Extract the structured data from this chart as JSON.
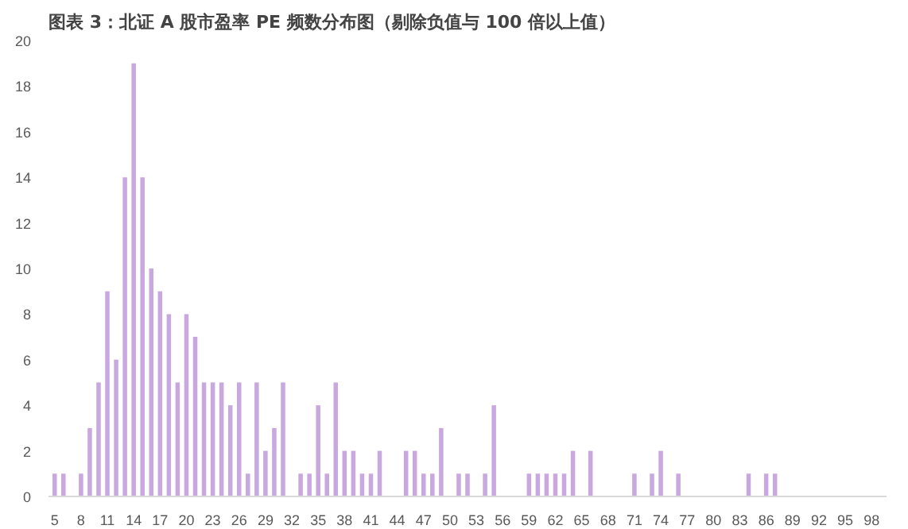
{
  "chart_data": {
    "type": "bar",
    "title": "图表 3：北证 A 股市盈率 PE 频数分布图（剔除负值与 100 倍以上值）",
    "categories": [
      "5",
      null,
      null,
      "8",
      null,
      null,
      "11",
      null,
      null,
      "14",
      null,
      null,
      "17",
      null,
      null,
      "20",
      null,
      null,
      "23",
      null,
      null,
      "26",
      null,
      null,
      "29",
      null,
      null,
      "32",
      null,
      null,
      "35",
      null,
      null,
      "38",
      null,
      null,
      "41",
      null,
      null,
      "44",
      null,
      null,
      "47",
      null,
      null,
      "50",
      null,
      null,
      "53",
      null,
      null,
      "56",
      null,
      null,
      "59",
      null,
      null,
      "62",
      null,
      null,
      "65",
      null,
      null,
      "68",
      null,
      null,
      "71",
      null,
      null,
      "74",
      null,
      null,
      "77",
      null,
      null,
      "80",
      null,
      null,
      "83",
      null,
      null,
      "86",
      null,
      null,
      "89",
      null,
      null,
      "92",
      null,
      null,
      "95",
      null,
      null,
      "98",
      null
    ],
    "values": [
      1,
      1,
      0,
      1,
      3,
      5,
      9,
      6,
      14,
      19,
      14,
      10,
      9,
      8,
      5,
      8,
      7,
      5,
      5,
      5,
      4,
      5,
      1,
      5,
      2,
      3,
      5,
      0,
      1,
      1,
      4,
      1,
      5,
      2,
      2,
      1,
      1,
      2,
      0,
      0,
      2,
      2,
      1,
      1,
      3,
      0,
      1,
      1,
      0,
      1,
      4,
      0,
      0,
      0,
      1,
      1,
      1,
      1,
      1,
      2,
      0,
      2,
      0,
      0,
      0,
      0,
      1,
      0,
      1,
      2,
      0,
      1,
      0,
      0,
      0,
      0,
      0,
      0,
      0,
      1,
      0,
      1,
      1,
      0,
      0,
      0,
      0,
      0,
      0,
      0,
      0,
      0,
      0,
      0,
      0
    ],
    "color": "#c9a8e0",
    "ylim": [
      0,
      20
    ],
    "yticks": [
      0,
      2,
      4,
      6,
      8,
      10,
      12,
      14,
      16,
      18,
      20
    ],
    "grid": false
  }
}
